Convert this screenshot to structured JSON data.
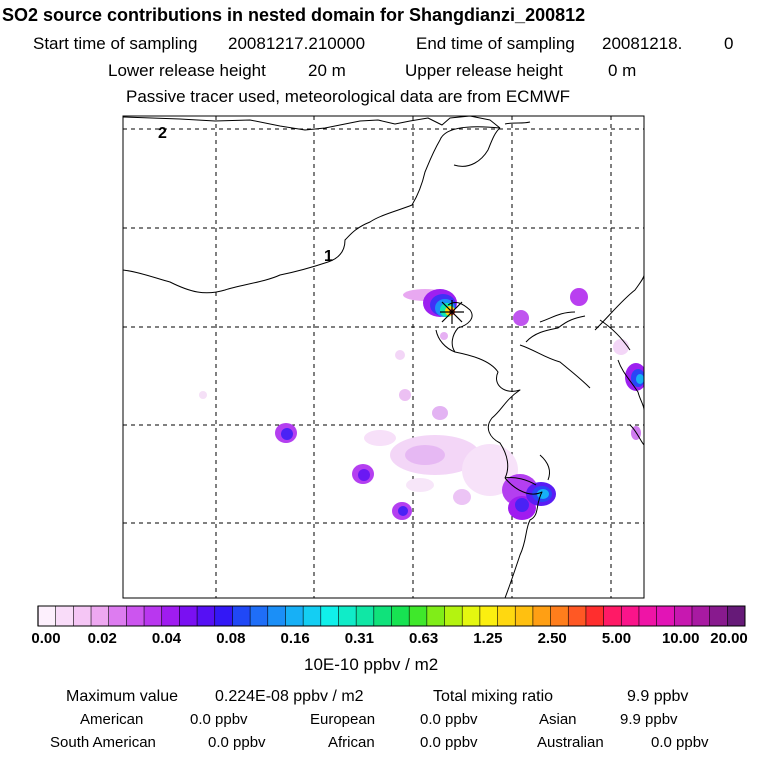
{
  "header": {
    "title": "SO2 source contributions in nested domain for Shangdianzi_200812",
    "start_label": "Start time of sampling",
    "start_value": "20081217.210000",
    "end_label": "End time of sampling",
    "end_value": "20081218.",
    "end_suffix": "0",
    "lower_label": "Lower release height",
    "lower_value": "20 m",
    "upper_label": "Upper release height",
    "upper_value": "0 m",
    "note": "Passive tracer used, meteorological data are from ECMWF"
  },
  "map": {
    "contour_labels": [
      "2",
      "1"
    ],
    "receptor_marker": "Shangdianzi receptor"
  },
  "colorbar": {
    "unit": "10E-10 ppbv / m2",
    "tick_labels": [
      "0.00",
      "0.02",
      "0.04",
      "0.08",
      "0.16",
      "0.31",
      "0.63",
      "1.25",
      "2.50",
      "5.00",
      "10.00",
      "20.00"
    ],
    "colors": [
      "#fdf0fd",
      "#f9dcf9",
      "#f5c6f5",
      "#eea8f1",
      "#dd7cf0",
      "#cc55ef",
      "#b937ef",
      "#a01cf0",
      "#7a10f2",
      "#5610f4",
      "#3318f6",
      "#2048f6",
      "#1f6ef7",
      "#1b8ff7",
      "#17b0f6",
      "#14cef3",
      "#10f0ea",
      "#10ecc8",
      "#10e7a5",
      "#10e27b",
      "#17e352",
      "#3fe82b",
      "#80ed18",
      "#b4f310",
      "#e4f710",
      "#fbef10",
      "#ffd810",
      "#ffc010",
      "#ff9f14",
      "#ff7e1c",
      "#ff5824",
      "#ff2e2e",
      "#ff1a66",
      "#fa148a",
      "#ef14a6",
      "#e214b6",
      "#c718b0",
      "#a81aa2",
      "#881a8e",
      "#661a78"
    ]
  },
  "stats": {
    "max_label": "Maximum value",
    "max_value": "0.224E-08 ppbv / m2",
    "total_label": "Total mixing ratio",
    "total_value": "9.9 ppbv",
    "regions": [
      {
        "name": "American",
        "value": "0.0 ppbv"
      },
      {
        "name": "European",
        "value": "0.0 ppbv"
      },
      {
        "name": "Asian",
        "value": "9.9 ppbv"
      },
      {
        "name": "South American",
        "value": "0.0 ppbv"
      },
      {
        "name": "African",
        "value": "0.0 ppbv"
      },
      {
        "name": "Australian",
        "value": "0.0 ppbv"
      }
    ]
  }
}
